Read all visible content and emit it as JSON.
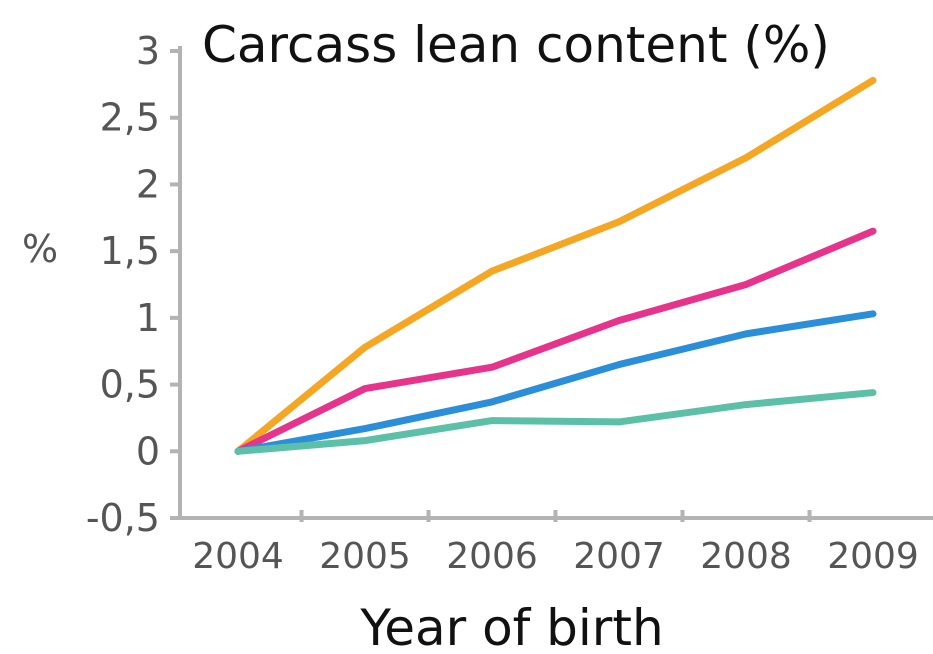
{
  "chart_data": {
    "type": "line",
    "title": "Carcass lean content (%)",
    "xlabel": "Year of birth",
    "ylabel": "%",
    "x": [
      "2004",
      "2005",
      "2006",
      "2007",
      "2008",
      "2009"
    ],
    "ylim": [
      -0.5,
      3
    ],
    "yticks": [
      {
        "value": -0.5,
        "label": "-0,5"
      },
      {
        "value": 0,
        "label": "0"
      },
      {
        "value": 0.5,
        "label": "0,5"
      },
      {
        "value": 1,
        "label": "1"
      },
      {
        "value": 1.5,
        "label": "1,5"
      },
      {
        "value": 2,
        "label": "2"
      },
      {
        "value": 2.5,
        "label": "2,5"
      },
      {
        "value": 3,
        "label": "3"
      }
    ],
    "grid": false,
    "legend": "none",
    "series": [
      {
        "color": "#f5a623",
        "values": [
          0,
          0.78,
          1.35,
          1.72,
          2.2,
          2.78
        ]
      },
      {
        "color": "#e6338c",
        "values": [
          0,
          0.47,
          0.63,
          0.98,
          1.25,
          1.65
        ]
      },
      {
        "color": "#2a8fd8",
        "values": [
          0,
          0.17,
          0.37,
          0.65,
          0.88,
          1.03
        ]
      },
      {
        "color": "#5cbfa7",
        "values": [
          0,
          0.08,
          0.23,
          0.22,
          0.35,
          0.44
        ]
      }
    ]
  }
}
